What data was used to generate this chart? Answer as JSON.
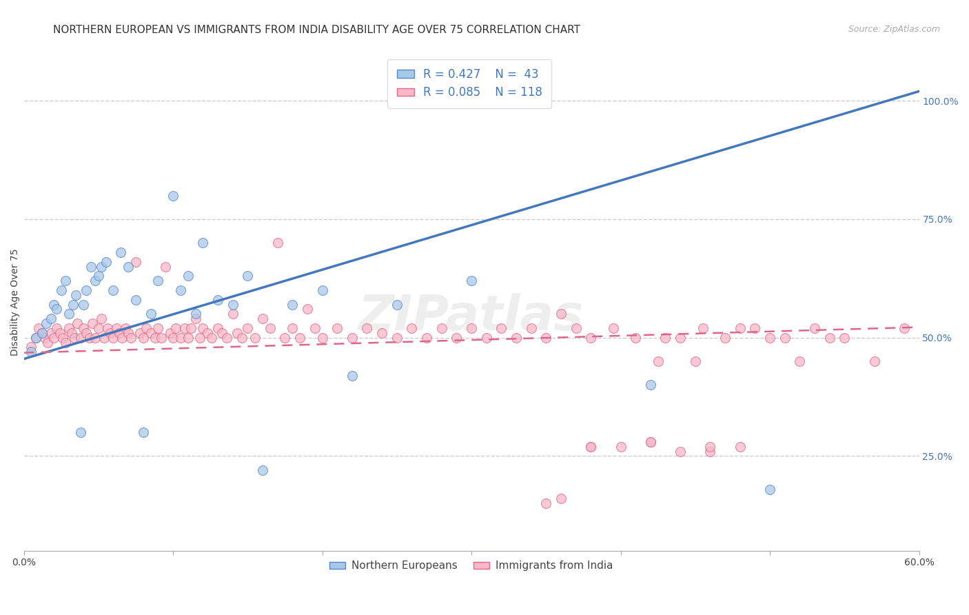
{
  "title": "NORTHERN EUROPEAN VS IMMIGRANTS FROM INDIA DISABILITY AGE OVER 75 CORRELATION CHART",
  "source_text": "Source: ZipAtlas.com",
  "ylabel": "Disability Age Over 75",
  "xlim": [
    0.0,
    0.6
  ],
  "ylim": [
    0.05,
    1.1
  ],
  "xticks": [
    0.0,
    0.1,
    0.2,
    0.3,
    0.4,
    0.5,
    0.6
  ],
  "xticklabels": [
    "0.0%",
    "",
    "",
    "",
    "",
    "",
    "60.0%"
  ],
  "yticks_right": [
    0.25,
    0.5,
    0.75,
    1.0
  ],
  "ytick_right_labels": [
    "25.0%",
    "50.0%",
    "75.0%",
    "100.0%"
  ],
  "blue_R": 0.427,
  "blue_N": 43,
  "pink_R": 0.085,
  "pink_N": 118,
  "blue_color": "#a8c8e8",
  "blue_edge_color": "#5588cc",
  "pink_color": "#f8b8c8",
  "pink_edge_color": "#e06888",
  "blue_legend_label": "Northern Europeans",
  "pink_legend_label": "Immigrants from India",
  "blue_trend": [
    0.0,
    0.6,
    0.455,
    1.02
  ],
  "pink_trend": [
    0.0,
    0.6,
    0.468,
    0.522
  ],
  "blue_line_color": "#4477bb",
  "pink_line_color": "#dd6688",
  "blue_x": [
    0.005,
    0.008,
    0.012,
    0.015,
    0.018,
    0.02,
    0.022,
    0.025,
    0.028,
    0.03,
    0.033,
    0.035,
    0.038,
    0.04,
    0.042,
    0.045,
    0.048,
    0.05,
    0.052,
    0.055,
    0.06,
    0.065,
    0.07,
    0.075,
    0.08,
    0.085,
    0.09,
    0.1,
    0.105,
    0.11,
    0.115,
    0.12,
    0.13,
    0.14,
    0.15,
    0.16,
    0.18,
    0.2,
    0.22,
    0.25,
    0.3,
    0.42,
    0.5
  ],
  "blue_y": [
    0.47,
    0.5,
    0.51,
    0.53,
    0.54,
    0.57,
    0.56,
    0.6,
    0.62,
    0.55,
    0.57,
    0.59,
    0.3,
    0.57,
    0.6,
    0.65,
    0.62,
    0.63,
    0.65,
    0.66,
    0.6,
    0.68,
    0.65,
    0.58,
    0.3,
    0.55,
    0.62,
    0.8,
    0.6,
    0.63,
    0.55,
    0.7,
    0.58,
    0.57,
    0.63,
    0.22,
    0.57,
    0.6,
    0.42,
    0.57,
    0.62,
    0.4,
    0.18
  ],
  "pink_x": [
    0.005,
    0.008,
    0.01,
    0.012,
    0.014,
    0.016,
    0.018,
    0.02,
    0.022,
    0.024,
    0.026,
    0.028,
    0.03,
    0.032,
    0.034,
    0.036,
    0.038,
    0.04,
    0.042,
    0.044,
    0.046,
    0.048,
    0.05,
    0.052,
    0.054,
    0.056,
    0.058,
    0.06,
    0.062,
    0.064,
    0.066,
    0.068,
    0.07,
    0.072,
    0.075,
    0.078,
    0.08,
    0.082,
    0.085,
    0.088,
    0.09,
    0.092,
    0.095,
    0.098,
    0.1,
    0.102,
    0.105,
    0.108,
    0.11,
    0.112,
    0.115,
    0.118,
    0.12,
    0.123,
    0.126,
    0.13,
    0.133,
    0.136,
    0.14,
    0.143,
    0.146,
    0.15,
    0.155,
    0.16,
    0.165,
    0.17,
    0.175,
    0.18,
    0.185,
    0.19,
    0.195,
    0.2,
    0.21,
    0.22,
    0.23,
    0.24,
    0.25,
    0.26,
    0.27,
    0.28,
    0.29,
    0.3,
    0.31,
    0.32,
    0.33,
    0.34,
    0.35,
    0.36,
    0.37,
    0.38,
    0.395,
    0.41,
    0.425,
    0.44,
    0.455,
    0.47,
    0.49,
    0.51,
    0.53,
    0.55,
    0.57,
    0.59,
    0.43,
    0.45,
    0.48,
    0.5,
    0.52,
    0.54,
    0.38,
    0.4,
    0.42,
    0.46,
    0.48,
    0.35,
    0.36,
    0.38,
    0.42,
    0.44,
    0.46
  ],
  "pink_y": [
    0.48,
    0.5,
    0.52,
    0.51,
    0.5,
    0.49,
    0.51,
    0.5,
    0.52,
    0.51,
    0.5,
    0.49,
    0.52,
    0.51,
    0.5,
    0.53,
    0.5,
    0.52,
    0.51,
    0.5,
    0.53,
    0.5,
    0.52,
    0.54,
    0.5,
    0.52,
    0.51,
    0.5,
    0.52,
    0.51,
    0.5,
    0.52,
    0.51,
    0.5,
    0.66,
    0.51,
    0.5,
    0.52,
    0.51,
    0.5,
    0.52,
    0.5,
    0.65,
    0.51,
    0.5,
    0.52,
    0.5,
    0.52,
    0.5,
    0.52,
    0.54,
    0.5,
    0.52,
    0.51,
    0.5,
    0.52,
    0.51,
    0.5,
    0.55,
    0.51,
    0.5,
    0.52,
    0.5,
    0.54,
    0.52,
    0.7,
    0.5,
    0.52,
    0.5,
    0.56,
    0.52,
    0.5,
    0.52,
    0.5,
    0.52,
    0.51,
    0.5,
    0.52,
    0.5,
    0.52,
    0.5,
    0.52,
    0.5,
    0.52,
    0.5,
    0.52,
    0.5,
    0.55,
    0.52,
    0.5,
    0.52,
    0.5,
    0.45,
    0.5,
    0.52,
    0.5,
    0.52,
    0.5,
    0.52,
    0.5,
    0.45,
    0.52,
    0.5,
    0.45,
    0.52,
    0.5,
    0.45,
    0.5,
    0.27,
    0.27,
    0.28,
    0.26,
    0.27,
    0.15,
    0.16,
    0.27,
    0.28,
    0.26,
    0.27
  ],
  "grid_color": "#cccccc",
  "background_color": "#ffffff",
  "title_fontsize": 11,
  "axis_label_fontsize": 10,
  "tick_fontsize": 10,
  "legend_fontsize": 12
}
